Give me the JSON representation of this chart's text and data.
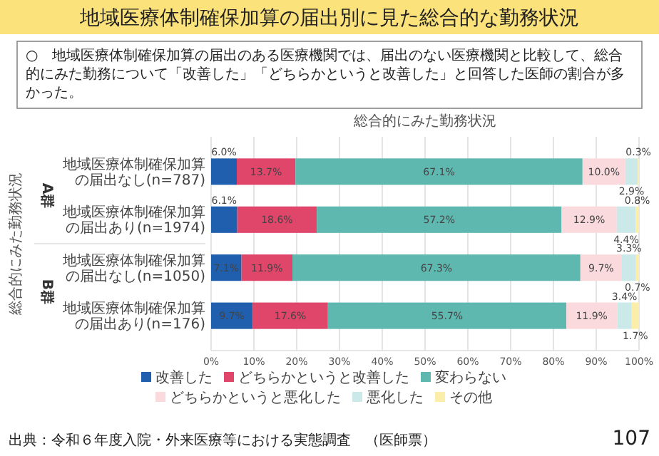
{
  "chart_data": {
    "type": "bar",
    "orientation": "horizontal",
    "stacked": true,
    "title": "地域医療体制確保加算の届出別に見た総合的な勤務状況",
    "subtitle": "○　地域医療体制確保加算の届出のある医療機関では、届出のない医療機関と比較して、総合的にみた勤務について「改善した」「どちらかというと改善した」と回答した医師の割合が多かった。",
    "ylabel": "総合的にみた勤務状況",
    "categories": [
      "地域医療体制確保加算の届出なし(n=787)",
      "地域医療体制確保加算の届出あり(n=1974)",
      "地域医療体制確保加算の届出なし(n=1050)",
      "地域医療体制確保加算の届出あり(n=176)"
    ],
    "series": [
      {
        "name": "改善した",
        "color": "#1f5fad",
        "values": [
          6.0,
          6.1,
          7.1,
          9.7
        ],
        "value_labels": [
          "6.0%",
          "6.1%",
          "7.1%",
          "9.7%"
        ]
      },
      {
        "name": "どちらかというと改善した",
        "color": "#e0456a",
        "values": [
          13.7,
          18.6,
          11.9,
          17.6
        ],
        "value_labels": [
          "13.7%",
          "18.6%",
          "11.9%",
          "17.6%"
        ]
      },
      {
        "name": "変わらない",
        "color": "#5fb8b0",
        "values": [
          67.1,
          57.2,
          67.3,
          55.7
        ],
        "value_labels": [
          "67.1%",
          "57.2%",
          "67.3%",
          "55.7%"
        ]
      },
      {
        "name": "どちらかというと悪化した",
        "color": "#fadadd",
        "values": [
          10.0,
          12.9,
          9.7,
          11.9
        ],
        "value_labels": [
          "10.0%",
          "12.9%",
          "9.7%",
          "11.9%"
        ]
      },
      {
        "name": "悪化した",
        "color": "#cce9ea",
        "values": [
          2.9,
          4.4,
          3.3,
          3.4
        ],
        "value_labels": [
          "2.9%",
          "4.4%",
          "3.3%",
          "3.4%"
        ]
      },
      {
        "name": "その他",
        "color": "#fbeeaa",
        "values": [
          0.3,
          0.8,
          0.7,
          1.7
        ],
        "value_labels": [
          "0.3%",
          "0.8%",
          "0.7%",
          "1.7%"
        ]
      }
    ],
    "xlim": [
      0,
      100
    ],
    "xticks": [
      {
        "value": 0,
        "label": "0%"
      },
      {
        "value": 10,
        "label": "10%"
      },
      {
        "value": 20,
        "label": "20%"
      },
      {
        "value": 30,
        "label": "30%"
      },
      {
        "value": 40,
        "label": "40%"
      },
      {
        "value": 50,
        "label": "50%"
      },
      {
        "value": 60,
        "label": "60%"
      },
      {
        "value": 70,
        "label": "70%"
      },
      {
        "value": 80,
        "label": "80%"
      },
      {
        "value": 90,
        "label": "90%"
      },
      {
        "value": 100,
        "label": "100%"
      }
    ],
    "grid": "x",
    "legend": "bottom",
    "annotations": [
      "総合的にみた勤務状況",
      "A群",
      "B群",
      "出典：令和６年度入院・外来医療等における実態調査　（医師票）",
      "107"
    ]
  }
}
